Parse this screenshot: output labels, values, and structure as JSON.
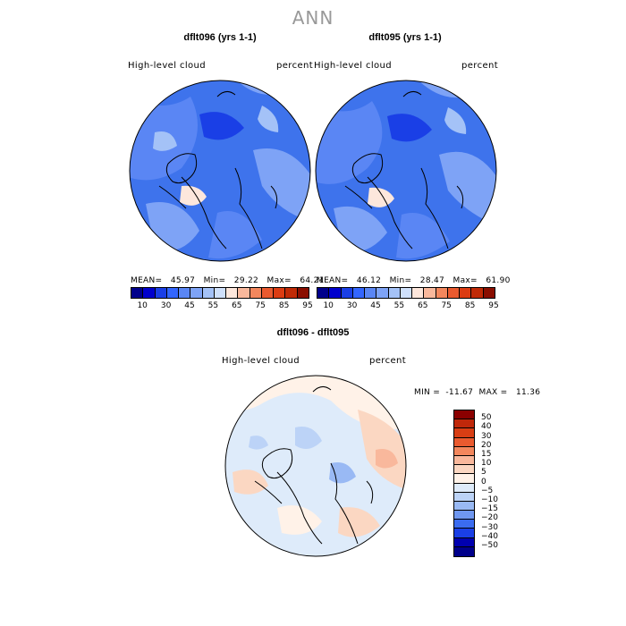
{
  "main_title": "ANN",
  "colors": {
    "abs_palette": [
      "#00008b",
      "#0000cd",
      "#1a3fe6",
      "#3366ff",
      "#5a86f4",
      "#7ea3f6",
      "#a4c2f7",
      "#cfe0fb",
      "#fde7dc",
      "#f9b89c",
      "#f3875d",
      "#ea5a2f",
      "#dc3c12",
      "#c02a06",
      "#8a0e00"
    ],
    "diff_palette": [
      "#8b0000",
      "#c0280a",
      "#d83e14",
      "#ea5a2f",
      "#f3875d",
      "#f9b89c",
      "#fbd7c2",
      "#fff2e8",
      "#deebfa",
      "#bcd3f7",
      "#99b9f4",
      "#6f97f0",
      "#3b6cf0",
      "#1a3fe6",
      "#0000b0",
      "#00008b"
    ]
  },
  "panels": [
    {
      "title": "dflt096 (yrs 1-1)",
      "variable": "High-level cloud",
      "units": "percent",
      "stats": "MEAN=   45.97   Min=   29.22   Max=   64.21"
    },
    {
      "title": "dflt095 (yrs 1-1)",
      "variable": "High-level cloud",
      "units": "percent",
      "stats": "MEAN=   46.12   Min=   28.47   Max=   61.90"
    }
  ],
  "abs_ticks": [
    "10",
    "30",
    "45",
    "55",
    "65",
    "75",
    "85",
    "95"
  ],
  "diff_panel": {
    "title": "dflt096 - dflt095",
    "variable": "High-level cloud",
    "units": "percent",
    "stats": "MIN =  -11.67  MAX =   11.36",
    "ticks": [
      "50",
      "40",
      "30",
      "20",
      "15",
      "10",
      "5",
      "0",
      "−5",
      "−10",
      "−15",
      "−20",
      "−30",
      "−40",
      "−50"
    ]
  }
}
